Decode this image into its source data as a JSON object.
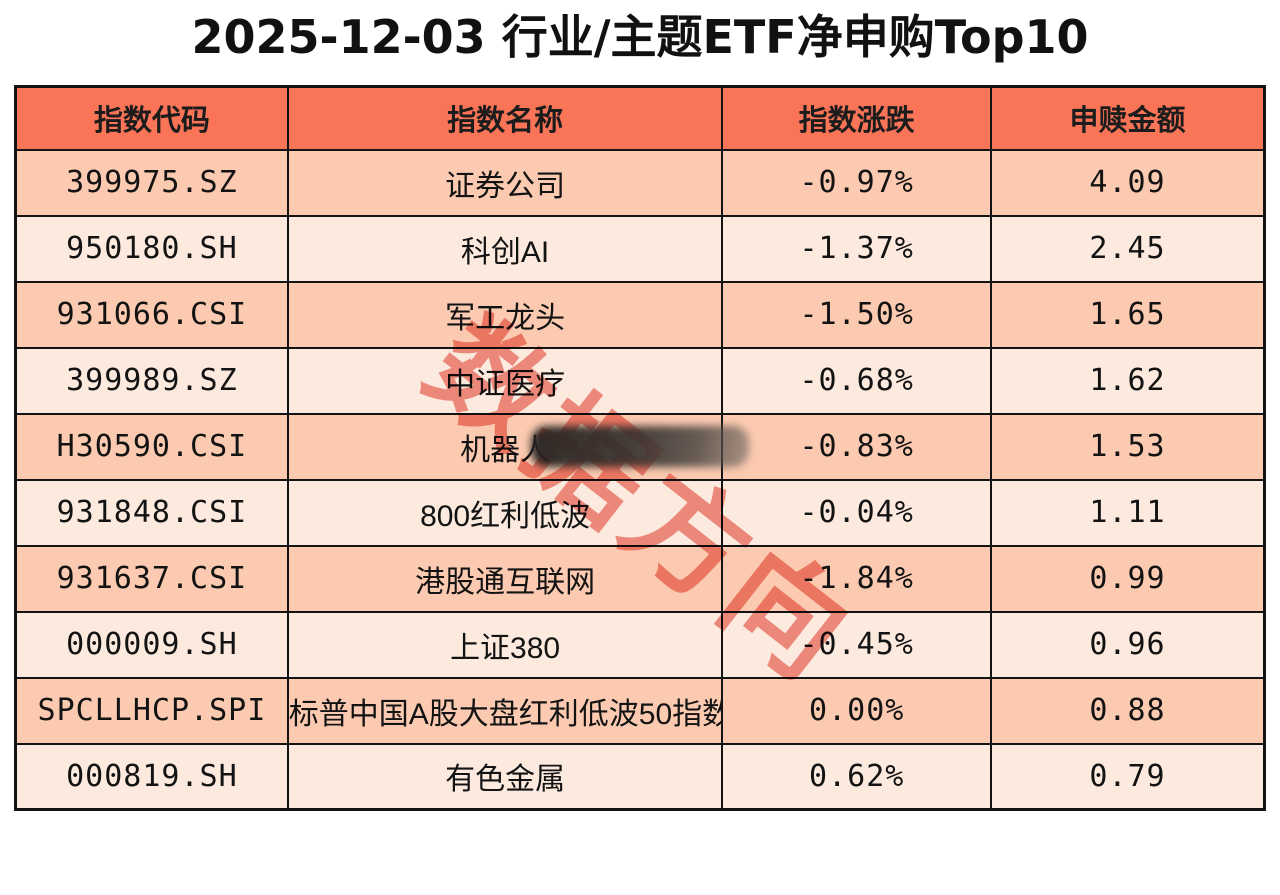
{
  "title": "2025-12-03 行业/主题ETF净申购Top10",
  "watermark": {
    "text": "数据方向",
    "color": "#E34D40"
  },
  "colors": {
    "header_bg": "#FA7557",
    "row_dark_bg": "#FBCAB0",
    "row_light_bg": "#FCEADF",
    "border": "#131313",
    "watermark_red": "#E34D40"
  },
  "chart_data": {
    "type": "table",
    "title": "2025-12-03 行业/主题ETF净申购Top10",
    "columns": [
      "指数代码",
      "指数名称",
      "指数涨跌",
      "申赎金额"
    ],
    "rows": [
      [
        "399975.SZ",
        "证券公司",
        "-0.97%",
        "4.09"
      ],
      [
        "950180.SH",
        "科创AI",
        "-1.37%",
        "2.45"
      ],
      [
        "931066.CSI",
        "军工龙头",
        "-1.50%",
        "1.65"
      ],
      [
        "399989.SZ",
        "中证医疗",
        "-0.68%",
        "1.62"
      ],
      [
        "H30590.CSI",
        "机器人",
        "-0.83%",
        "1.53"
      ],
      [
        "931848.CSI",
        "800红利低波",
        "-0.04%",
        "1.11"
      ],
      [
        "931637.CSI",
        "港股通互联网",
        "-1.84%",
        "0.99"
      ],
      [
        "000009.SH",
        "上证380",
        "-0.45%",
        "0.96"
      ],
      [
        "SPCLLHCP.SPI",
        "标普中国A股大盘红利低波50指数",
        "0.00%",
        "0.88"
      ],
      [
        "000819.SH",
        "有色金属",
        "0.62%",
        "0.79"
      ]
    ]
  }
}
